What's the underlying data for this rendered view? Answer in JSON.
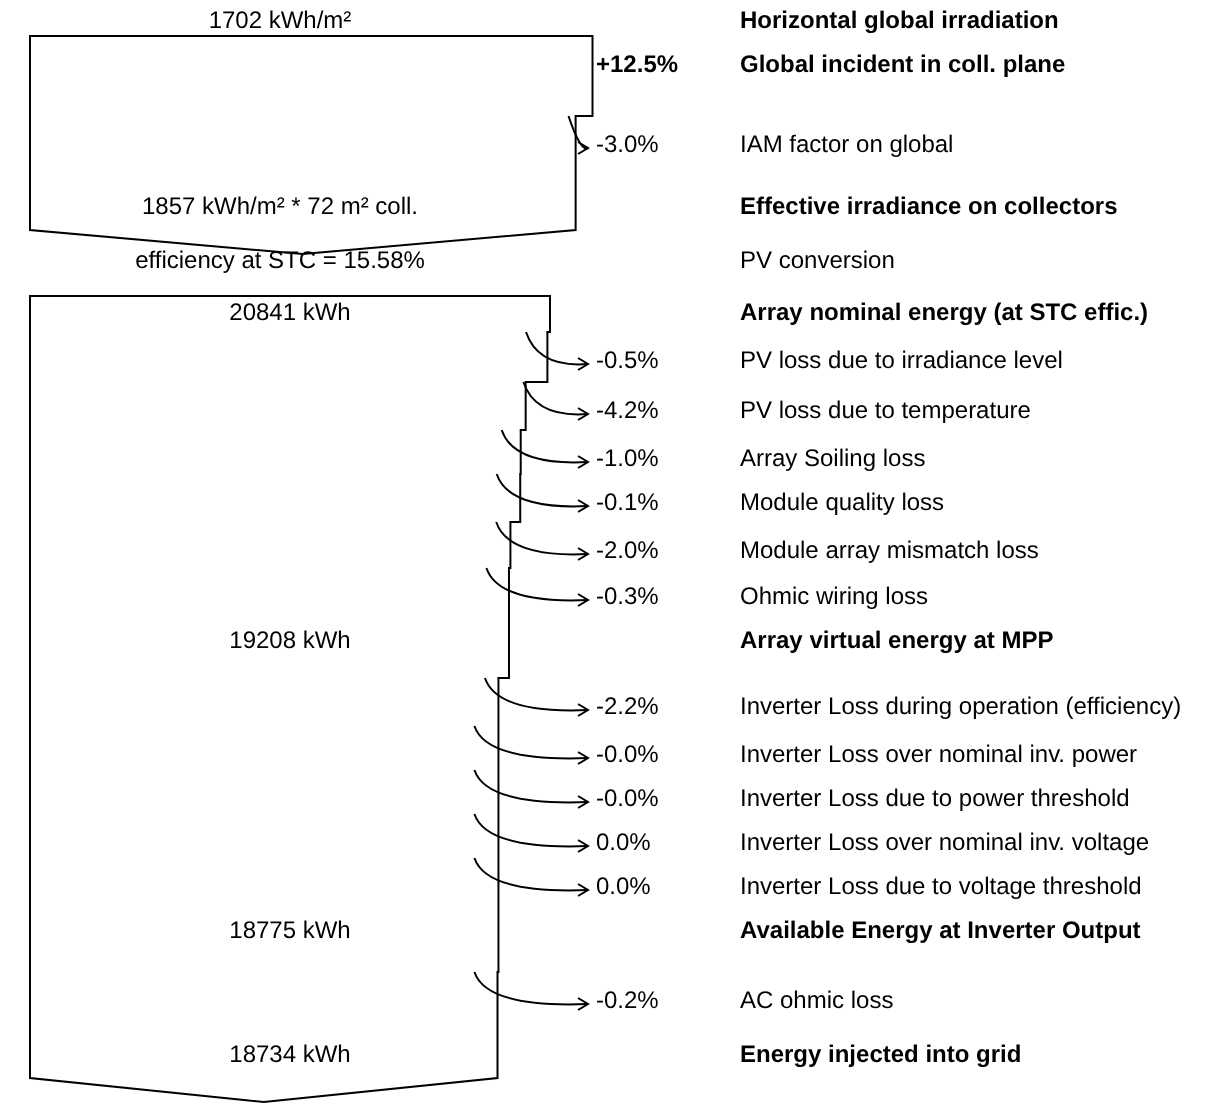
{
  "chart_data": {
    "type": "other",
    "categories": [
      "Horizontal global irradiation",
      "Global incident in coll. plane",
      "IAM factor on global",
      "Effective irradiance on collectors",
      "PV conversion",
      "Array nominal energy (at STC effic.)",
      "PV loss due to irradiance level",
      "PV loss due to temperature",
      "Array Soiling loss",
      "Module quality loss",
      "Module array mismatch loss",
      "Ohmic wiring loss",
      "Array virtual energy at MPP",
      "Inverter Loss during operation (efficiency)",
      "Inverter Loss over nominal inv. power",
      "Inverter Loss due to power threshold",
      "Inverter Loss over nominal inv. voltage",
      "Inverter Loss due to voltage threshold",
      "Available Energy at Inverter Output",
      "AC ohmic loss",
      "Energy injected into grid"
    ],
    "values": [
      1702,
      12.5,
      -3.0,
      1857,
      15.58,
      20841,
      -0.5,
      -4.2,
      -1.0,
      -0.1,
      -2.0,
      -0.3,
      19208,
      -2.2,
      -0.0,
      -0.0,
      0.0,
      0.0,
      18775,
      -0.2,
      18734
    ],
    "value_labels": [
      "1702 kWh/m²",
      "+12.5%",
      "-3.0%",
      "1857 kWh/m² * 72 m² coll.",
      "efficiency at STC = 15.58%",
      "20841 kWh",
      "-0.5%",
      "-4.2%",
      "-1.0%",
      "-0.1%",
      "-2.0%",
      "-0.3%",
      "19208 kWh",
      "-2.2%",
      "-0.0%",
      "-0.0%",
      "0.0%",
      "0.0%",
      "18775 kWh",
      "-0.2%",
      "18734 kWh"
    ]
  }
}
